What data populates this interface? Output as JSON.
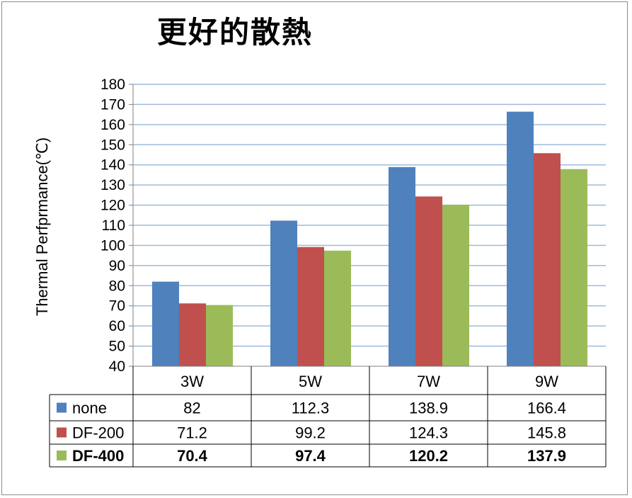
{
  "chart_data": {
    "type": "bar",
    "title": "更好的散熱",
    "ylabel": "Thermal Perfprmance(℃)",
    "xlabel": "",
    "categories": [
      "3W",
      "5W",
      "7W",
      "9W"
    ],
    "ylim": [
      40,
      180
    ],
    "yticks": [
      40,
      50,
      60,
      70,
      80,
      90,
      100,
      110,
      120,
      130,
      140,
      150,
      160,
      170,
      180
    ],
    "grid": true,
    "legend": "data-table",
    "series": [
      {
        "name": "none",
        "color": "#4f81bd",
        "values": [
          82,
          112.3,
          138.9,
          166.4
        ]
      },
      {
        "name": "DF-200",
        "color": "#c0504d",
        "values": [
          71.2,
          99.2,
          124.3,
          145.8
        ]
      },
      {
        "name": "DF-400",
        "color": "#9bbb59",
        "bold": true,
        "values": [
          70.4,
          97.4,
          120.2,
          137.9
        ]
      }
    ]
  }
}
